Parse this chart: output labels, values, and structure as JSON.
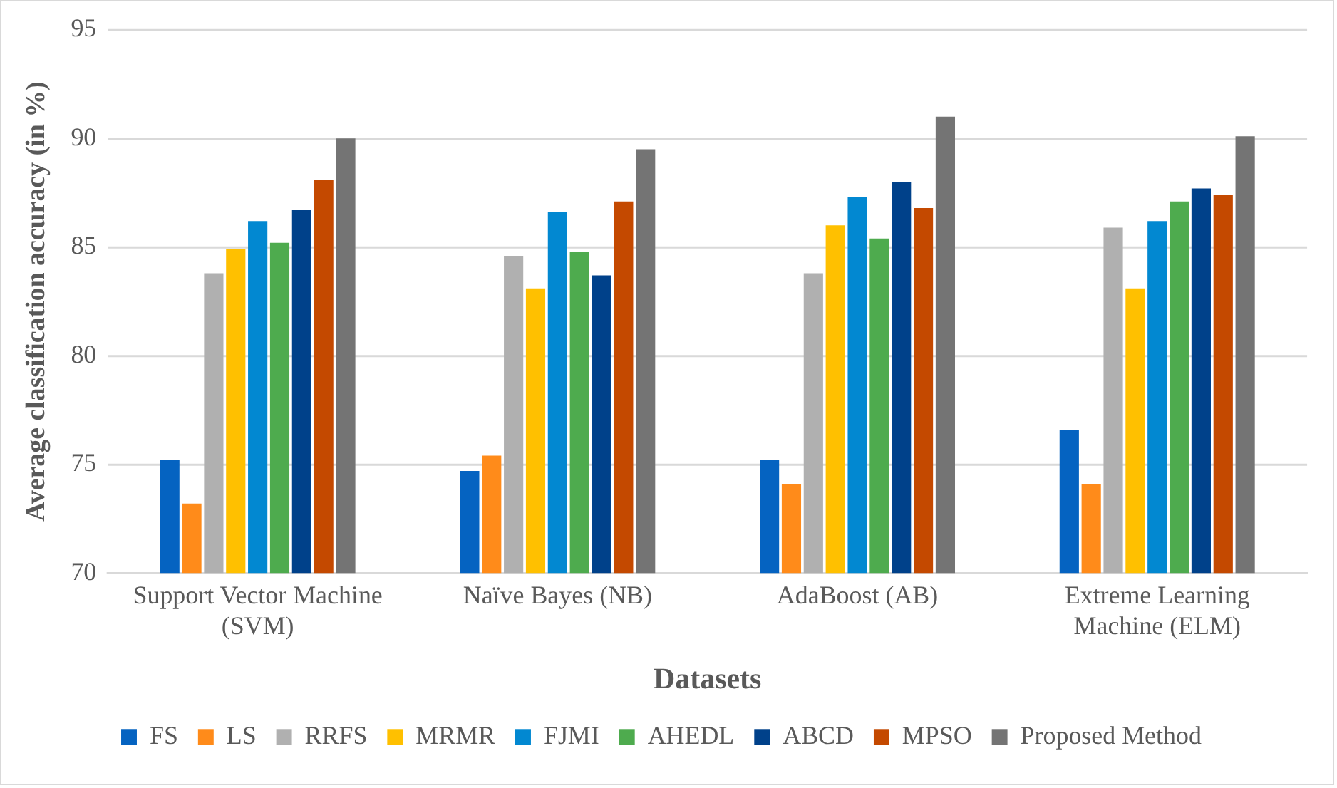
{
  "chart_data": {
    "type": "bar",
    "xlabel": "Datasets",
    "ylabel": "Average classification accuracy (in %)",
    "categories": [
      "Support Vector Machine (SVM)",
      "Naïve Bayes (NB)",
      "AdaBoost (AB)",
      "Extreme Learning Machine (ELM)"
    ],
    "series": [
      {
        "name": "FS",
        "color": "#0563c1",
        "values": [
          75.2,
          74.7,
          75.2,
          76.6
        ]
      },
      {
        "name": "LS",
        "color": "#ff8b1a",
        "values": [
          73.2,
          75.4,
          74.1,
          74.1
        ]
      },
      {
        "name": "RRFS",
        "color": "#b0b0b0",
        "values": [
          83.8,
          84.6,
          83.8,
          85.9
        ]
      },
      {
        "name": "MRMR",
        "color": "#ffc000",
        "values": [
          84.9,
          83.1,
          86.0,
          83.1
        ]
      },
      {
        "name": "FJMI",
        "color": "#0288d1",
        "values": [
          86.2,
          86.6,
          87.3,
          86.2
        ]
      },
      {
        "name": "AHEDL",
        "color": "#4eab4e",
        "values": [
          85.2,
          84.8,
          85.4,
          87.1
        ]
      },
      {
        "name": "ABCD",
        "color": "#00418a",
        "values": [
          86.7,
          83.7,
          88.0,
          87.7
        ]
      },
      {
        "name": "MPSO",
        "color": "#c44900",
        "values": [
          88.1,
          87.1,
          86.8,
          87.4
        ]
      },
      {
        "name": "Proposed Method",
        "color": "#747474",
        "values": [
          90.0,
          89.5,
          91.0,
          90.1
        ]
      }
    ],
    "ylim": [
      70,
      95
    ],
    "yticks": [
      70,
      75,
      80,
      85,
      90,
      95
    ],
    "grid": "y",
    "legend": "bottom"
  }
}
